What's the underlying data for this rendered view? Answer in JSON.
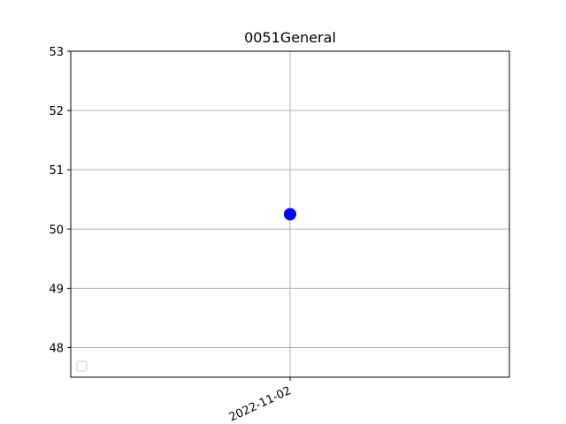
{
  "chart_data": {
    "type": "scatter",
    "title": "0051General",
    "xlabel": "",
    "ylabel": "",
    "x_tick_labels": [
      "2022-11-02"
    ],
    "y_ticks": [
      48,
      49,
      50,
      51,
      52,
      53
    ],
    "ylim": [
      47.5,
      53
    ],
    "grid": true,
    "legend": {
      "visible": true,
      "placement": "lower-left",
      "entries": []
    },
    "series": [
      {
        "color": "#0000ff",
        "marker": "circle",
        "points": [
          {
            "x": "2022-11-02",
            "y": 50.25
          }
        ]
      }
    ]
  }
}
